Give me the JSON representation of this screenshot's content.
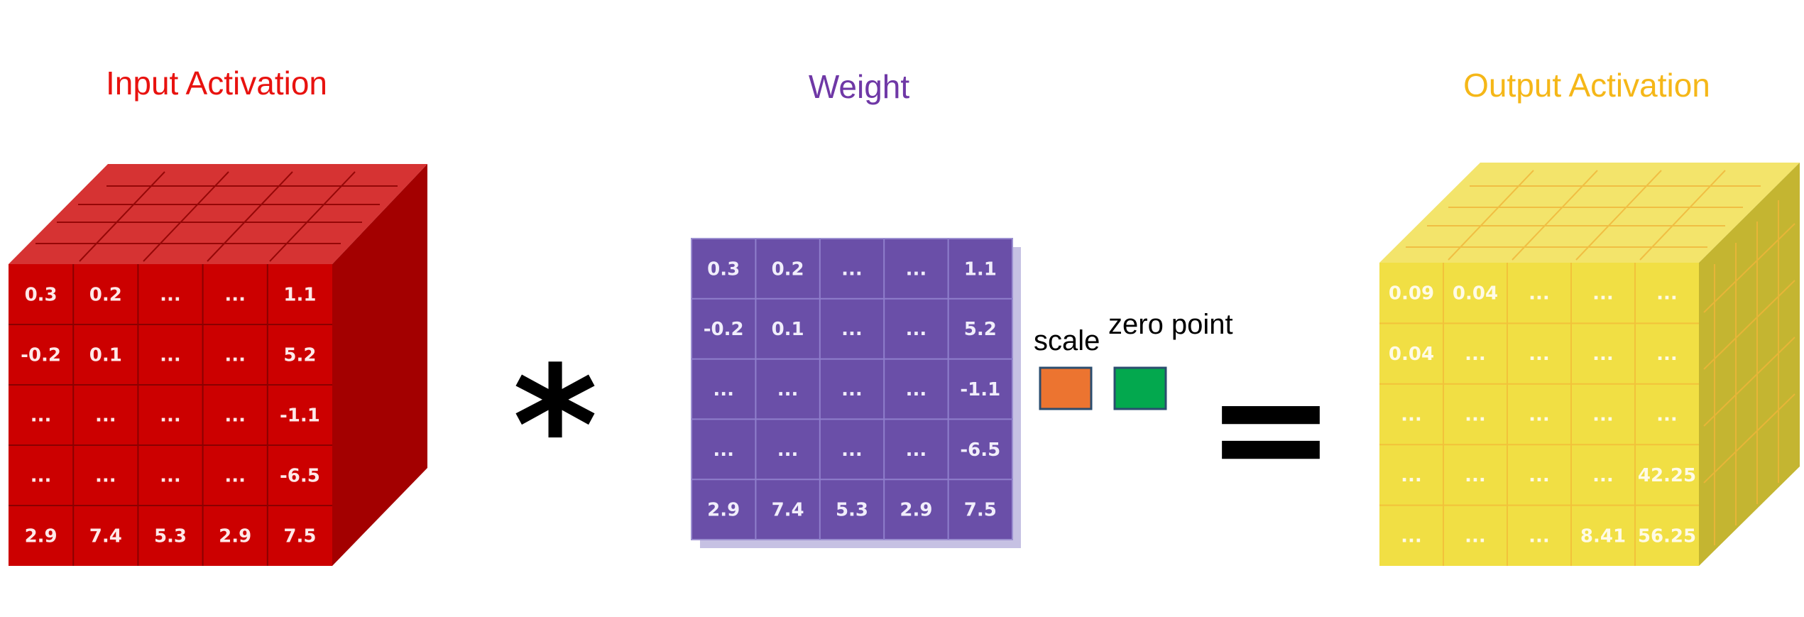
{
  "titles": {
    "input": "Input Activation",
    "weight": "Weight",
    "output": "Output Activation"
  },
  "colors": {
    "input_title": "#e8120f",
    "weight_title": "#6f38a6",
    "output_title": "#f5b718",
    "input_front": "#cc0000",
    "input_top": "#d63333",
    "input_side": "#a30000",
    "weight_front": "#6a4fa8",
    "weight_shadow": "#c6c1e3",
    "output_front": "#f1df44",
    "output_top": "#f3e46b",
    "output_side": "#c4b531",
    "scale_box": "#ec7430",
    "zero_point_box": "#03a84e"
  },
  "operators": {
    "multiply": "*",
    "equals": "="
  },
  "labels": {
    "scale": "scale",
    "zero_point": "zero point"
  },
  "icons": {
    "scale_box": "orange-square",
    "zero_point_box": "green-square"
  },
  "input_matrix": [
    [
      "0.3",
      "0.2",
      "...",
      "...",
      "1.1"
    ],
    [
      "-0.2",
      "0.1",
      "...",
      "...",
      "5.2"
    ],
    [
      "...",
      "...",
      "...",
      "...",
      "-1.1"
    ],
    [
      "...",
      "...",
      "...",
      "...",
      "-6.5"
    ],
    [
      "2.9",
      "7.4",
      "5.3",
      "2.9",
      "7.5"
    ]
  ],
  "weight_matrix": [
    [
      "0.3",
      "0.2",
      "...",
      "...",
      "1.1"
    ],
    [
      "-0.2",
      "0.1",
      "...",
      "...",
      "5.2"
    ],
    [
      "...",
      "...",
      "...",
      "...",
      "-1.1"
    ],
    [
      "...",
      "...",
      "...",
      "...",
      "-6.5"
    ],
    [
      "2.9",
      "7.4",
      "5.3",
      "2.9",
      "7.5"
    ]
  ],
  "output_matrix": [
    [
      "0.09",
      "0.04",
      "...",
      "...",
      "..."
    ],
    [
      "0.04",
      "...",
      "...",
      "...",
      "..."
    ],
    [
      "...",
      "...",
      "...",
      "...",
      "..."
    ],
    [
      "...",
      "...",
      "...",
      "...",
      "42.25"
    ],
    [
      "...",
      "...",
      "...",
      "8.41",
      "56.25"
    ]
  ]
}
